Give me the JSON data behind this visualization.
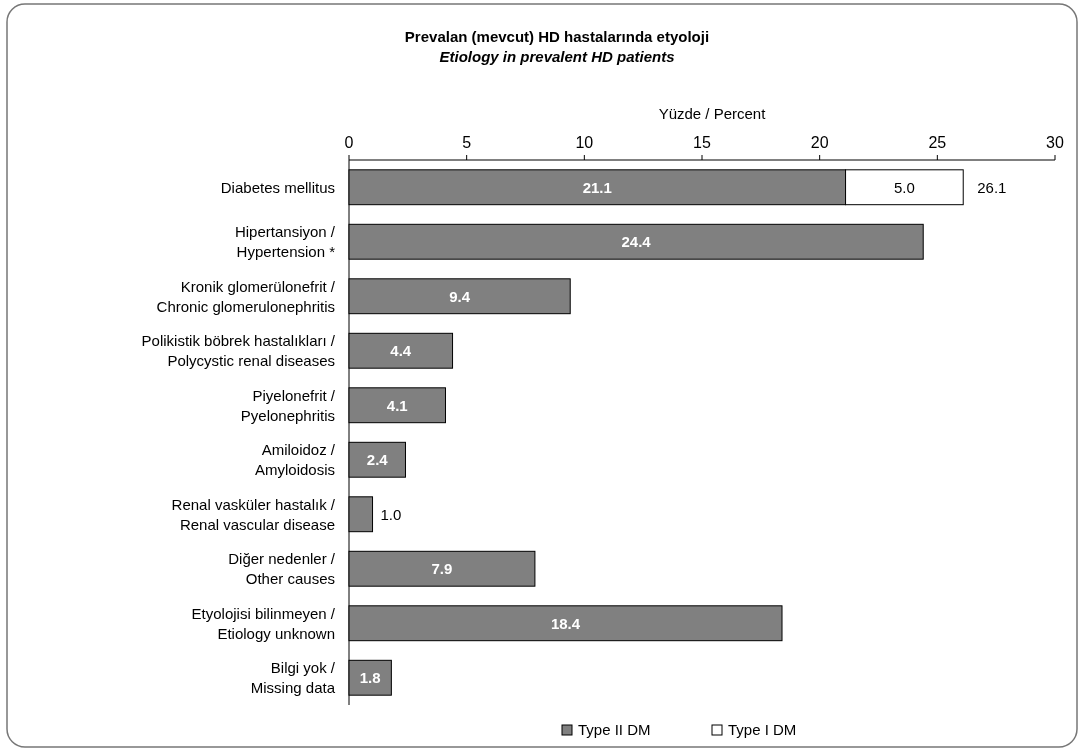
{
  "chart_data": {
    "type": "bar",
    "orientation": "horizontal",
    "stacked": true,
    "title": "Prevalan (mevcut) HD hastalarında etyoloji",
    "subtitle": "Etiology in prevalent HD patients",
    "xlabel": "Yüzde / Percent",
    "categories": [
      "Diabetes mellitus",
      "Hipertansiyon /\nHypertension *",
      "Kronik glomerülonefrit /\nChronic glomerulonephritis",
      "Polikistik böbrek hastalıkları /\nPolycystic renal diseases",
      "Piyelonefrit /\nPyelonephritis",
      "Amiloidoz /\nAmyloidosis",
      "Renal vasküler hastalık /\nRenal vascular disease",
      "Diğer nedenler /\nOther causes",
      "Etyolojisi bilinmeyen /\nEtiology unknown",
      "Bilgi yok /\nMissing  data"
    ],
    "series": [
      {
        "name": "Type II DM",
        "color": "#808080",
        "values": [
          21.1,
          24.4,
          9.4,
          4.4,
          4.1,
          2.4,
          1.0,
          7.9,
          18.4,
          1.8
        ],
        "value_labels": [
          "21.1",
          "24.4",
          "9.4",
          "4.4",
          "4.1",
          "2.4",
          "1.0",
          "7.9",
          "18.4",
          "1.8"
        ]
      },
      {
        "name": "Type I DM",
        "color": "#ffffff",
        "values": [
          5.0,
          null,
          null,
          null,
          null,
          null,
          null,
          null,
          null,
          null
        ],
        "value_labels": [
          "5.0",
          null,
          null,
          null,
          null,
          null,
          null,
          null,
          null,
          null
        ]
      }
    ],
    "totals": [
      "26.1",
      null,
      null,
      null,
      null,
      null,
      null,
      null,
      null,
      null
    ],
    "xlim": [
      0,
      30
    ],
    "xticks": [
      0,
      5,
      10,
      15,
      20,
      25,
      30
    ],
    "legend": "bottom"
  }
}
